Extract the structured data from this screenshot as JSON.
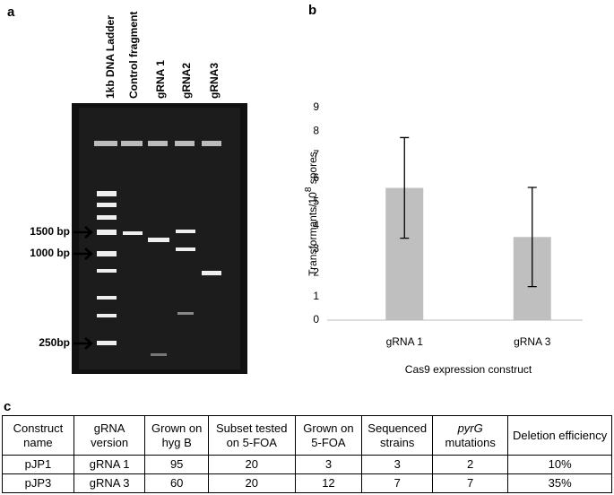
{
  "panels": {
    "a": "a",
    "b": "b",
    "c": "c"
  },
  "gel": {
    "lanes": [
      "1kb DNA Ladder",
      "Control fragment",
      "gRNA 1",
      "gRNA2",
      "gRNA3"
    ],
    "markers": [
      "1500 bp",
      "1000 bp",
      "250bp"
    ]
  },
  "chart_data": {
    "type": "bar",
    "categories": [
      "gRNA 1",
      "gRNA 3"
    ],
    "values": [
      5.6,
      3.52
    ],
    "errors": [
      2.13,
      2.1
    ],
    "color": "#bfbfbf",
    "ylim": [
      0,
      9
    ],
    "yticks": [
      0,
      1,
      2,
      3,
      4,
      5,
      6,
      7,
      8,
      9
    ],
    "ylabel": {
      "text": "Transformants/10",
      "sup": "8",
      "tail": " spores"
    },
    "xlabel": "Cas9 expression construct"
  },
  "table": {
    "header": [
      "Construct name",
      "gRNA version",
      "Grown on hyg B",
      "Subset tested on 5-FOA",
      "Grown on 5-FOA",
      "Sequenced strains",
      {
        "italic": "pyrG",
        "text": "mutations"
      },
      "Deletion efficiency"
    ],
    "rows": [
      [
        "pJP1",
        "gRNA 1",
        "95",
        "20",
        "3",
        "3",
        "2",
        "10%"
      ],
      [
        "pJP3",
        "gRNA 3",
        "60",
        "20",
        "12",
        "7",
        "7",
        "35%"
      ]
    ]
  }
}
